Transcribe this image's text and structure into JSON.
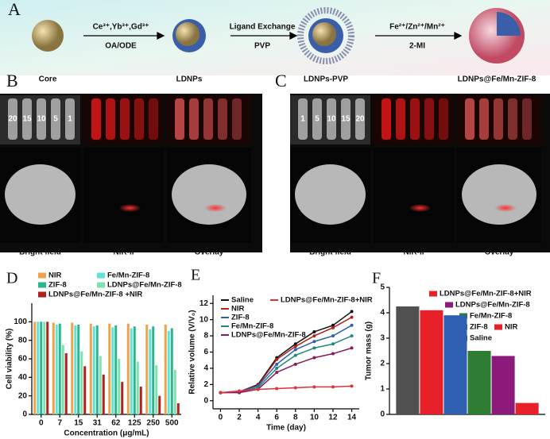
{
  "figure_a": {
    "label": "A",
    "stages": [
      "Core",
      "LDNPs",
      "LDNPs-PVP",
      "LDNPs@Fe/Mn-ZIF-8"
    ],
    "steps": [
      {
        "reagents": "Ce³⁺,Yb³⁺,Gd³⁺",
        "conditions": "OA/ODE"
      },
      {
        "reagents": "Ligand Exchange",
        "conditions": "PVP"
      },
      {
        "reagents": "Fe²⁺/Zn²⁺/Mn²⁺",
        "conditions": "2-MI"
      }
    ]
  },
  "figure_b": {
    "label": "B",
    "tube_labels": [
      "20",
      "15",
      "10",
      "5",
      "1"
    ],
    "columns": [
      "Bright field",
      "NIR-II",
      "Overlay"
    ]
  },
  "figure_c": {
    "label": "C",
    "tube_labels": [
      "1",
      "5",
      "10",
      "15",
      "20"
    ],
    "columns": [
      "Bright field",
      "NIR-II",
      "Overlay"
    ]
  },
  "chart_data": [
    {
      "type": "bar",
      "label": "D",
      "ylabel": "Cell viability (%)",
      "xlabel": "Concentration (μg/mL)",
      "categories": [
        "0",
        "7",
        "15",
        "31",
        "62",
        "125",
        "250",
        "500"
      ],
      "ylim": [
        0,
        120
      ],
      "yticks": [
        0,
        20,
        40,
        60,
        80,
        100
      ],
      "series": [
        {
          "name": "NIR",
          "color": "#f0a14a",
          "values": [
            100,
            99,
            99,
            98,
            98,
            98,
            97,
            97
          ]
        },
        {
          "name": "Fe/Mn-ZIF-8",
          "color": "#5fe3d6",
          "values": [
            100,
            97,
            96,
            95,
            94,
            93,
            92,
            90
          ]
        },
        {
          "name": "ZIF-8",
          "color": "#2bb58c",
          "values": [
            100,
            98,
            97,
            96,
            96,
            95,
            95,
            93
          ]
        },
        {
          "name": "LDNPs@Fe/Mn-ZIF-8",
          "color": "#7fe0b0",
          "values": [
            100,
            75,
            68,
            63,
            60,
            57,
            53,
            48
          ]
        },
        {
          "name": "LDNPs@Fe/Mn-ZIF-8 +NIR",
          "color": "#b0201c",
          "values": [
            100,
            66,
            52,
            43,
            35,
            30,
            20,
            12
          ]
        }
      ]
    },
    {
      "type": "line",
      "label": "E",
      "ylabel": "Relative volume (V/V₀)",
      "xlabel": "Time (day)",
      "x": [
        0,
        2,
        4,
        6,
        8,
        10,
        12,
        14
      ],
      "xlim": [
        -0.8,
        14.8
      ],
      "xticks": [
        0,
        2,
        4,
        6,
        8,
        10,
        12,
        14
      ],
      "ylim": [
        -1,
        13
      ],
      "yticks": [
        0,
        2,
        4,
        6,
        8,
        10,
        12
      ],
      "series": [
        {
          "name": "Saline",
          "color": "#111111",
          "values": [
            1,
            1.1,
            2,
            5.3,
            7,
            8.5,
            9.3,
            11
          ]
        },
        {
          "name": "NIR",
          "color": "#b0201c",
          "values": [
            1,
            1.1,
            1.9,
            5.1,
            6.7,
            8,
            9,
            10.3
          ]
        },
        {
          "name": "ZIF-8",
          "color": "#2f5fb0",
          "values": [
            1,
            1.1,
            1.8,
            4.5,
            6.3,
            7.3,
            8,
            9.3
          ]
        },
        {
          "name": "Fe/Mn-ZIF-8",
          "color": "#1f8a7a",
          "values": [
            1,
            1.1,
            1.6,
            4,
            5.6,
            6.5,
            7,
            8
          ]
        },
        {
          "name": "LDNPs@Fe/Mn-ZIF-8",
          "color": "#8b1a5a",
          "values": [
            1,
            1,
            1.4,
            3.5,
            4.5,
            5.3,
            5.8,
            6.5
          ]
        },
        {
          "name": "LDNPs@Fe/Mn-ZIF-8+NIR",
          "color": "#e0303a",
          "values": [
            1,
            1.2,
            1.4,
            1.5,
            1.6,
            1.7,
            1.7,
            1.8
          ]
        }
      ]
    },
    {
      "type": "bar",
      "label": "F",
      "ylabel": "Tumor mass (g)",
      "categories": [
        null
      ],
      "ylim": [
        0,
        5
      ],
      "yticks": [
        0,
        1,
        2,
        3,
        4,
        5
      ],
      "series": [
        {
          "name": "Saline",
          "color": "#505050",
          "values": [
            4.25
          ]
        },
        {
          "name": "NIR",
          "color": "#e8202a",
          "values": [
            4.1
          ]
        },
        {
          "name": "ZIF-8",
          "color": "#2f5fb0",
          "values": [
            3.9
          ]
        },
        {
          "name": "Fe/Mn-ZIF-8",
          "color": "#2e7d32",
          "values": [
            2.5
          ]
        },
        {
          "name": "LDNPs@Fe/Mn-ZIF-8",
          "color": "#8b1a7a",
          "values": [
            2.3
          ]
        },
        {
          "name": "LDNPs@Fe/Mn-ZIF-8+NIR",
          "color": "#e8202a",
          "values": [
            0.45
          ]
        }
      ]
    }
  ]
}
